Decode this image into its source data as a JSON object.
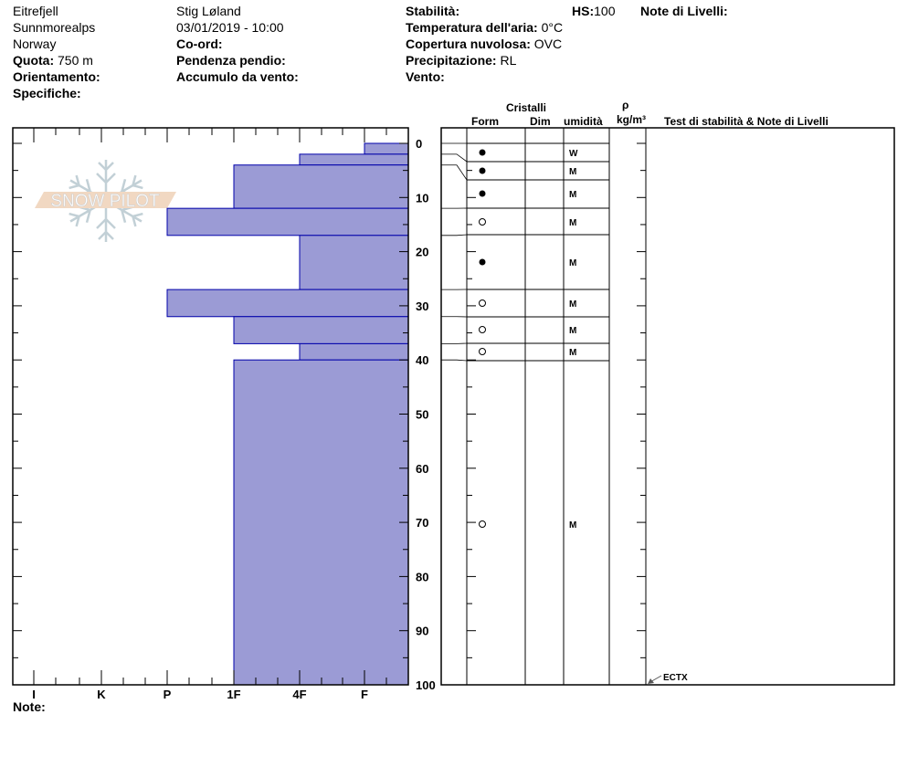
{
  "header": {
    "location": "Eitrefjell",
    "range": "Sunnmorealps",
    "country": "Norway",
    "elevation_label": "Quota:",
    "elevation": "750 m",
    "aspect_label": "Orientamento:",
    "specifics_label": "Specifiche:",
    "observer": "Stig Løland",
    "datetime": "03/01/2019 - 10:00",
    "coord_label": "Co-ord:",
    "slope_label": "Pendenza pendio:",
    "wind_loading_label": "Accumulo da vento:",
    "stability_label": "Stabilità:",
    "hs_label": "HS:",
    "hs": "100",
    "layer_notes_label": "Note di Livelli:",
    "air_temp_label": "Temperatura dell'aria:",
    "air_temp": "0°C",
    "sky_label": "Copertura nuvolosa:",
    "sky": "OVC",
    "precip_label": "Precipitazione:",
    "precip": "RL",
    "wind_label": "Vento:",
    "notes_label": "Note:"
  },
  "table_headers": {
    "crystals": "Cristalli",
    "form": "Form",
    "size": "Dim",
    "wetness": "umidità",
    "density_symbol": "ρ",
    "density_unit": "kg/m³",
    "tests": "Test di stabilità & Note di Livelli"
  },
  "logo": "SNOW PILOT",
  "chart_data": {
    "type": "bar",
    "orientation": "horizontal-profile",
    "x_categories": [
      "I",
      "K",
      "P",
      "1F",
      "4F",
      "F"
    ],
    "y_ticks": [
      0,
      10,
      20,
      30,
      40,
      50,
      60,
      70,
      80,
      90,
      100
    ],
    "ylim": [
      0,
      100
    ],
    "bar_color": "#9b9bd5",
    "bar_edge": "#0000aa",
    "hardness_layers": [
      {
        "top": 0,
        "bottom": 2,
        "hardness": "F"
      },
      {
        "top": 2,
        "bottom": 4,
        "hardness": "4F"
      },
      {
        "top": 4,
        "bottom": 12,
        "hardness": "1F"
      },
      {
        "top": 12,
        "bottom": 17,
        "hardness": "P"
      },
      {
        "top": 17,
        "bottom": 27,
        "hardness": "4F"
      },
      {
        "top": 27,
        "bottom": 32,
        "hardness": "P"
      },
      {
        "top": 32,
        "bottom": 37,
        "hardness": "1F"
      },
      {
        "top": 37,
        "bottom": 40,
        "hardness": "4F"
      },
      {
        "top": 40,
        "bottom": 100,
        "hardness": "1F"
      }
    ],
    "layer_rows": [
      {
        "form": "filled-circle",
        "wetness": "W"
      },
      {
        "form": "filled-circle",
        "wetness": "M"
      },
      {
        "form": "filled-circle",
        "wetness": "M"
      },
      {
        "form": "open-circle",
        "wetness": "M"
      },
      {
        "form": "filled-circle",
        "wetness": "M"
      },
      {
        "form": "open-circle",
        "wetness": "M"
      },
      {
        "form": "open-circle",
        "wetness": "M"
      },
      {
        "form": "open-circle",
        "wetness": "M"
      },
      {
        "form": "open-circle",
        "wetness": "M"
      }
    ],
    "tests": [
      {
        "depth": 100,
        "label": "ECTX"
      }
    ]
  }
}
